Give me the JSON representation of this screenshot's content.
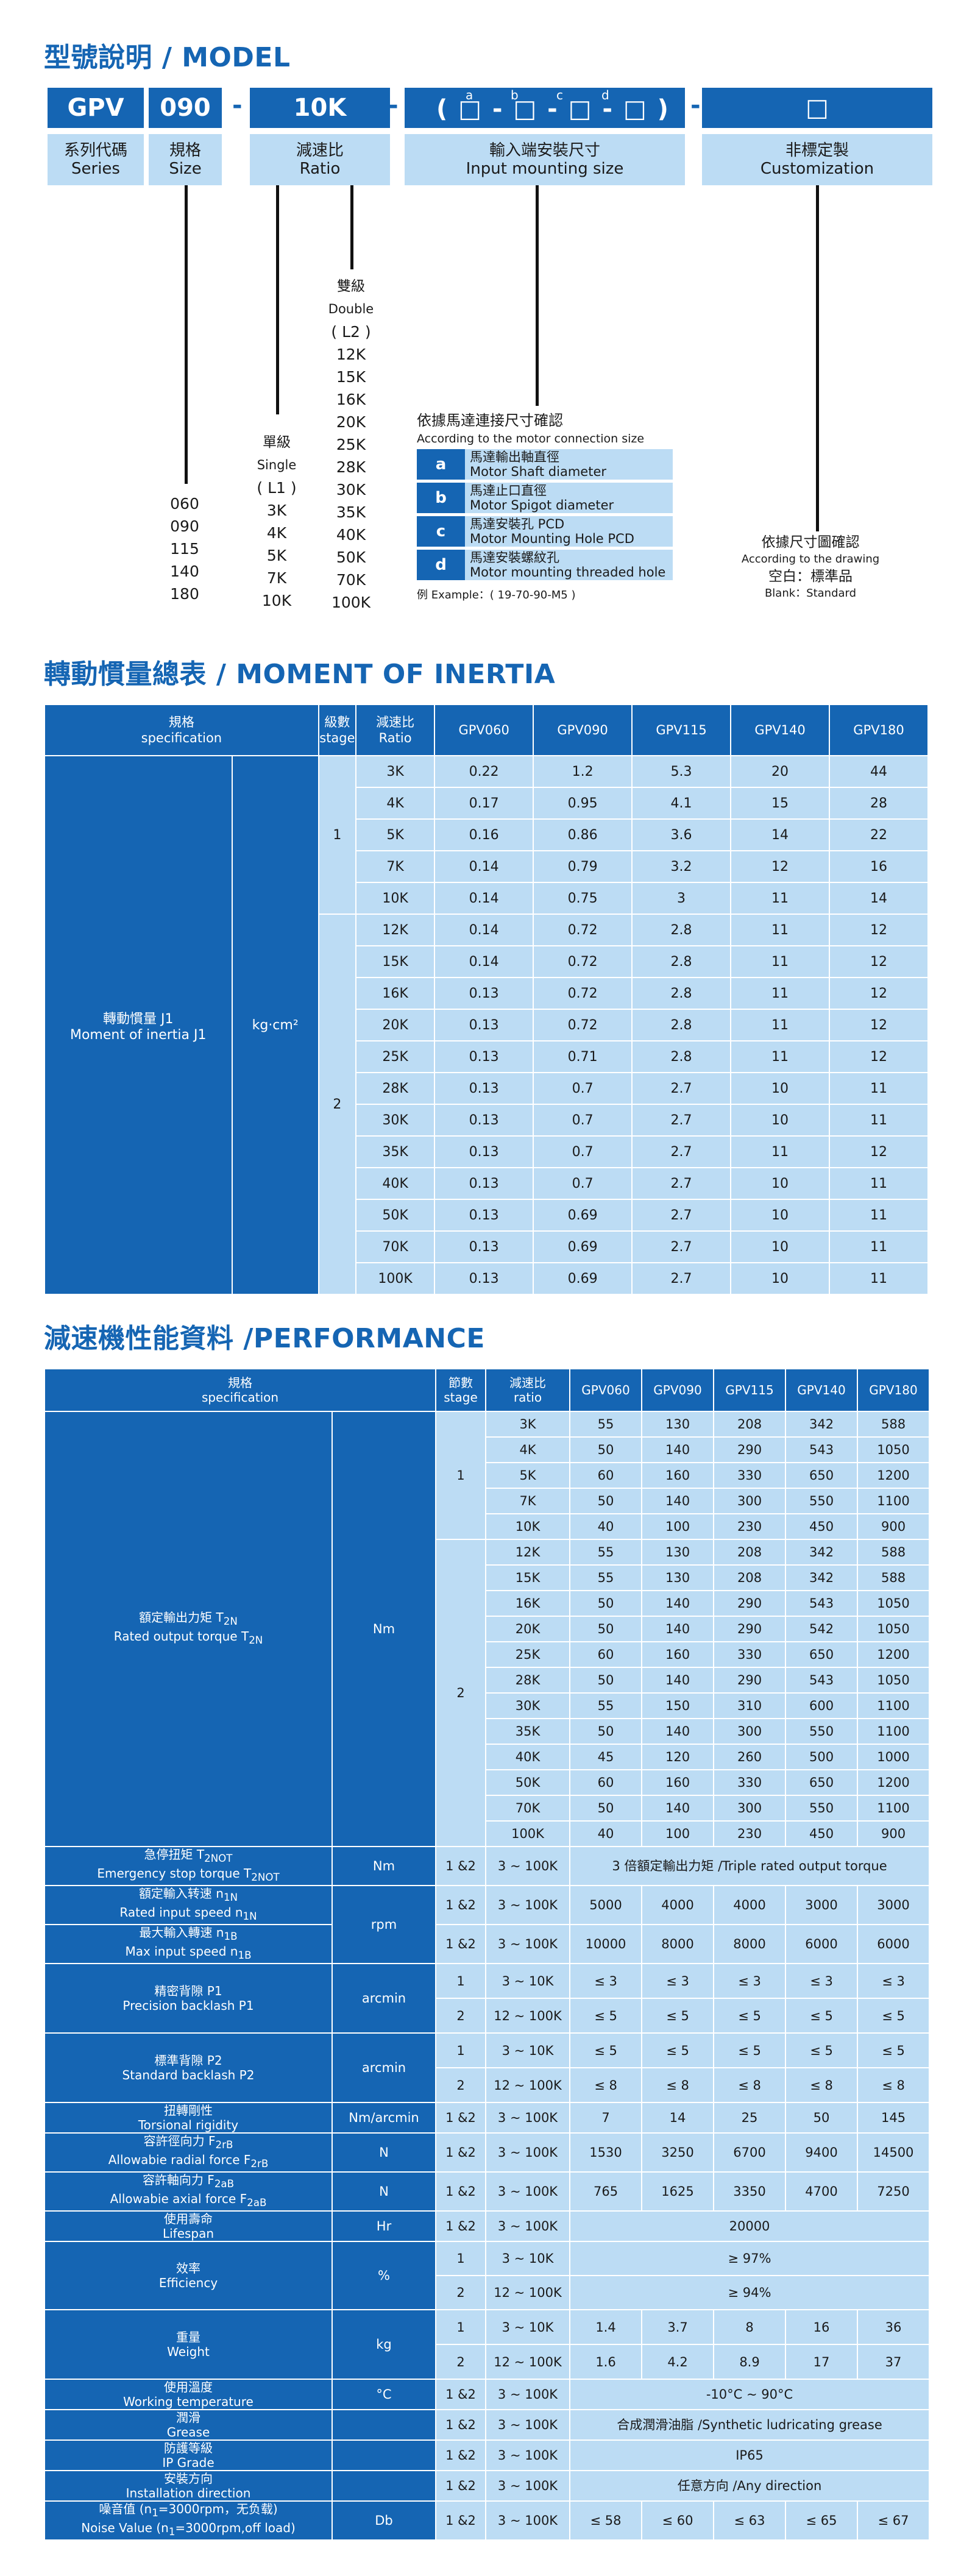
{
  "model": {
    "title": "型號說明 / MODEL",
    "code": {
      "series": "GPV",
      "size": "090",
      "ratio": "10K",
      "custom": "□",
      "dash": "-",
      "mount_letters": [
        "a",
        "b",
        "c",
        "d"
      ],
      "mount_pattern": "( □ - □ - □ - □ )"
    },
    "labels": [
      {
        "cn": "系列代碼",
        "en": "Series"
      },
      {
        "cn": "規格",
        "en": "Size"
      },
      {
        "cn": "減速比",
        "en": "Ratio"
      },
      {
        "cn": "輸入端安裝尺寸",
        "en": "Input mounting size"
      },
      {
        "cn": "非標定製",
        "en": "Customization"
      }
    ],
    "sizes": [
      "060",
      "090",
      "115",
      "140",
      "180"
    ],
    "single": {
      "cn": "單級",
      "en": "Single",
      "code": "( L1 )",
      "ratios": [
        "3K",
        "4K",
        "5K",
        "7K",
        "10K"
      ]
    },
    "double": {
      "cn": "雙級",
      "en": "Double",
      "code": "( L2 )",
      "ratios": [
        "12K",
        "15K",
        "16K",
        "20K",
        "25K",
        "28K",
        "30K",
        "35K",
        "40K",
        "50K",
        "70K",
        "100K"
      ]
    },
    "mounting": {
      "title_cn": "依據馬達連接尺寸確認",
      "title_en": "According to the motor connection size",
      "items": [
        {
          "key": "a",
          "cn": "馬達輸出軸直徑",
          "en": "Motor Shaft diameter"
        },
        {
          "key": "b",
          "cn": "馬達止口直徑",
          "en": "Motor Spigot diameter"
        },
        {
          "key": "c",
          "cn": "馬達安裝孔 PCD",
          "en": "Motor Mounting Hole PCD"
        },
        {
          "key": "d",
          "cn": "馬達安裝螺紋孔",
          "en": "Motor mounting threaded hole"
        }
      ],
      "example": "例 Example：( 19-70-90-M5 )"
    },
    "custom_note": {
      "cn": "依據尺寸圖確認",
      "en": "According to the drawing",
      "blank_cn": "空白：標準品",
      "blank_en": "Blank：Standard"
    }
  },
  "inertia": {
    "title": "轉動慣量總表 / MOMENT OF INERTIA",
    "headers": {
      "spec_cn": "規格",
      "spec_en": "specification",
      "stage_cn": "級數",
      "stage_en": "stage",
      "ratio_cn": "減速比",
      "ratio_en": "Ratio",
      "models": [
        "GPV060",
        "GPV090",
        "GPV115",
        "GPV140",
        "GPV180"
      ]
    },
    "row_label_cn": "轉動慣量 J1",
    "row_label_en": "Moment of inertia J1",
    "unit": "kg·cm²",
    "stages": [
      "1",
      "2"
    ],
    "rows": [
      {
        "ratio": "3K",
        "v": [
          "0.22",
          "1.2",
          "5.3",
          "20",
          "44"
        ]
      },
      {
        "ratio": "4K",
        "v": [
          "0.17",
          "0.95",
          "4.1",
          "15",
          "28"
        ]
      },
      {
        "ratio": "5K",
        "v": [
          "0.16",
          "0.86",
          "3.6",
          "14",
          "22"
        ]
      },
      {
        "ratio": "7K",
        "v": [
          "0.14",
          "0.79",
          "3.2",
          "12",
          "16"
        ]
      },
      {
        "ratio": "10K",
        "v": [
          "0.14",
          "0.75",
          "3",
          "11",
          "14"
        ]
      },
      {
        "ratio": "12K",
        "v": [
          "0.14",
          "0.72",
          "2.8",
          "11",
          "12"
        ]
      },
      {
        "ratio": "15K",
        "v": [
          "0.14",
          "0.72",
          "2.8",
          "11",
          "12"
        ]
      },
      {
        "ratio": "16K",
        "v": [
          "0.13",
          "0.72",
          "2.8",
          "11",
          "12"
        ]
      },
      {
        "ratio": "20K",
        "v": [
          "0.13",
          "0.72",
          "2.8",
          "11",
          "12"
        ]
      },
      {
        "ratio": "25K",
        "v": [
          "0.13",
          "0.71",
          "2.8",
          "11",
          "12"
        ]
      },
      {
        "ratio": "28K",
        "v": [
          "0.13",
          "0.7",
          "2.7",
          "10",
          "11"
        ]
      },
      {
        "ratio": "30K",
        "v": [
          "0.13",
          "0.7",
          "2.7",
          "10",
          "11"
        ]
      },
      {
        "ratio": "35K",
        "v": [
          "0.13",
          "0.7",
          "2.7",
          "11",
          "12"
        ]
      },
      {
        "ratio": "40K",
        "v": [
          "0.13",
          "0.7",
          "2.7",
          "10",
          "11"
        ]
      },
      {
        "ratio": "50K",
        "v": [
          "0.13",
          "0.69",
          "2.7",
          "10",
          "11"
        ]
      },
      {
        "ratio": "70K",
        "v": [
          "0.13",
          "0.69",
          "2.7",
          "10",
          "11"
        ]
      },
      {
        "ratio": "100K",
        "v": [
          "0.13",
          "0.69",
          "2.7",
          "10",
          "11"
        ]
      }
    ]
  },
  "performance": {
    "title": "減速機性能資料 /PERFORMANCE",
    "headers": {
      "spec_cn": "規格",
      "spec_en": "specification",
      "stage_cn": "節數",
      "stage_en": "stage",
      "ratio_cn": "減速比",
      "ratio_en": "ratio",
      "models": [
        "GPV060",
        "GPV090",
        "GPV115",
        "GPV140",
        "GPV180"
      ]
    },
    "torque": {
      "label_cn": "額定輸出力矩 T",
      "sub_cn": "2N",
      "label_en": "Rated output torque T",
      "sub_en": "2N",
      "unit": "Nm",
      "stages": [
        "1",
        "2"
      ],
      "rows": [
        {
          "ratio": "3K",
          "v": [
            "55",
            "130",
            "208",
            "342",
            "588"
          ]
        },
        {
          "ratio": "4K",
          "v": [
            "50",
            "140",
            "290",
            "543",
            "1050"
          ]
        },
        {
          "ratio": "5K",
          "v": [
            "60",
            "160",
            "330",
            "650",
            "1200"
          ]
        },
        {
          "ratio": "7K",
          "v": [
            "50",
            "140",
            "300",
            "550",
            "1100"
          ]
        },
        {
          "ratio": "10K",
          "v": [
            "40",
            "100",
            "230",
            "450",
            "900"
          ]
        },
        {
          "ratio": "12K",
          "v": [
            "55",
            "130",
            "208",
            "342",
            "588"
          ]
        },
        {
          "ratio": "15K",
          "v": [
            "55",
            "130",
            "208",
            "342",
            "588"
          ]
        },
        {
          "ratio": "16K",
          "v": [
            "50",
            "140",
            "290",
            "543",
            "1050"
          ]
        },
        {
          "ratio": "20K",
          "v": [
            "50",
            "140",
            "290",
            "542",
            "1050"
          ]
        },
        {
          "ratio": "25K",
          "v": [
            "60",
            "160",
            "330",
            "650",
            "1200"
          ]
        },
        {
          "ratio": "28K",
          "v": [
            "50",
            "140",
            "290",
            "543",
            "1050"
          ]
        },
        {
          "ratio": "30K",
          "v": [
            "55",
            "150",
            "310",
            "600",
            "1100"
          ]
        },
        {
          "ratio": "35K",
          "v": [
            "50",
            "140",
            "300",
            "550",
            "1100"
          ]
        },
        {
          "ratio": "40K",
          "v": [
            "45",
            "120",
            "260",
            "500",
            "1000"
          ]
        },
        {
          "ratio": "50K",
          "v": [
            "60",
            "160",
            "330",
            "650",
            "1200"
          ]
        },
        {
          "ratio": "70K",
          "v": [
            "50",
            "140",
            "300",
            "550",
            "1100"
          ]
        },
        {
          "ratio": "100K",
          "v": [
            "40",
            "100",
            "230",
            "450",
            "900"
          ]
        }
      ]
    },
    "emergency": {
      "label_cn": "急停扭矩 T",
      "sub_cn": "2NOT",
      "label_en": "Emergency stop torque T",
      "sub_en": "2NOT",
      "unit": "Nm",
      "stage": "1 &2",
      "ratio": "3 ~ 100K",
      "value": "3 倍額定輸出力矩 /Triple rated output torque"
    },
    "speed": {
      "unit": "rpm",
      "rated": {
        "label_cn": "額定輸入转速 n",
        "sub_cn": "1N",
        "label_en": "Rated input speed n",
        "sub_en": "1N",
        "stage": "1 &2",
        "ratio": "3 ~ 100K",
        "v": [
          "5000",
          "4000",
          "4000",
          "3000",
          "3000"
        ]
      },
      "max": {
        "label_cn": "最大輸入轉速 n",
        "sub_cn": "1B",
        "label_en": "Max input speed n",
        "sub_en": "1B",
        "stage": "1 &2",
        "ratio": "3 ~ 100K",
        "v": [
          "10000",
          "8000",
          "8000",
          "6000",
          "6000"
        ]
      }
    },
    "precision": {
      "label_cn": "精密背隙 P1",
      "label_en": "Precision backlash P1",
      "unit": "arcmin",
      "rows": [
        {
          "stage": "1",
          "ratio": "3 ~ 10K",
          "v": [
            "≤ 3",
            "≤ 3",
            "≤ 3",
            "≤ 3",
            "≤ 3"
          ]
        },
        {
          "stage": "2",
          "ratio": "12 ~ 100K",
          "v": [
            "≤ 5",
            "≤ 5",
            "≤ 5",
            "≤ 5",
            "≤ 5"
          ]
        }
      ]
    },
    "standard": {
      "label_cn": "標準背隙 P2",
      "label_en": "Standard backlash P2",
      "unit": "arcmin",
      "rows": [
        {
          "stage": "1",
          "ratio": "3 ~ 10K",
          "v": [
            "≤ 5",
            "≤ 5",
            "≤ 5",
            "≤ 5",
            "≤ 5"
          ]
        },
        {
          "stage": "2",
          "ratio": "12 ~ 100K",
          "v": [
            "≤ 8",
            "≤ 8",
            "≤ 8",
            "≤ 8",
            "≤ 8"
          ]
        }
      ]
    },
    "rigidity": {
      "label_cn": "扭轉剛性",
      "label_en": "Torsional rigidity",
      "unit": "Nm/arcmin",
      "stage": "1 &2",
      "ratio": "3 ~ 100K",
      "v": [
        "7",
        "14",
        "25",
        "50",
        "145"
      ]
    },
    "radial": {
      "label_cn": "容許徑向力 F",
      "sub_cn": "2rB",
      "label_en": "Allowabie radial force F",
      "sub_en": "2rB",
      "unit": "N",
      "stage": "1 &2",
      "ratio": "3 ~ 100K",
      "v": [
        "1530",
        "3250",
        "6700",
        "9400",
        "14500"
      ]
    },
    "axial": {
      "label_cn": "容許軸向力 F",
      "sub_cn": "2aB",
      "label_en": "Allowabie axial force F",
      "sub_en": "2aB",
      "unit": "N",
      "stage": "1 &2",
      "ratio": "3 ~ 100K",
      "v": [
        "765",
        "1625",
        "3350",
        "4700",
        "7250"
      ]
    },
    "lifespan": {
      "label_cn": "使用壽命",
      "label_en": "Lifespan",
      "unit": "Hr",
      "stage": "1 &2",
      "ratio": "3 ~ 100K",
      "value": "20000"
    },
    "efficiency": {
      "label_cn": "效率",
      "label_en": "Efficiency",
      "unit": "%",
      "rows": [
        {
          "stage": "1",
          "ratio": "3 ~ 10K",
          "value": "≥ 97%"
        },
        {
          "stage": "2",
          "ratio": "12 ~ 100K",
          "value": "≥ 94%"
        }
      ]
    },
    "weight": {
      "label_cn": "重量",
      "label_en": "Weight",
      "unit": "kg",
      "rows": [
        {
          "stage": "1",
          "ratio": "3 ~ 10K",
          "v": [
            "1.4",
            "3.7",
            "8",
            "16",
            "36"
          ]
        },
        {
          "stage": "2",
          "ratio": "12 ~ 100K",
          "v": [
            "1.6",
            "4.2",
            "8.9",
            "17",
            "37"
          ]
        }
      ]
    },
    "temperature": {
      "label_cn": "使用溫度",
      "label_en": "Working temperature",
      "unit": "°C",
      "stage": "1 &2",
      "ratio": "3 ~ 100K",
      "value": "-10°C ~ 90°C"
    },
    "grease": {
      "label_cn": "潤滑",
      "label_en": "Grease",
      "stage": "1 &2",
      "ratio": "3 ~ 100K",
      "value": "合成潤滑油脂 /Synthetic ludricating grease"
    },
    "ip": {
      "label_cn": "防護等級",
      "label_en": "IP Grade",
      "stage": "1 &2",
      "ratio": "3 ~ 100K",
      "value": "IP65"
    },
    "direction": {
      "label_cn": "安裝方向",
      "label_en": "Installation direction",
      "stage": "1 &2",
      "ratio": "3 ~ 100K",
      "value": "任意方向 /Any direction"
    },
    "noise": {
      "label_cn": "噪音值 (n",
      "sub_cn": "1",
      "label_cn2": "=3000rpm，无负载)",
      "label_en": "Noise Value (n",
      "sub_en": "1",
      "label_en2": "=3000rpm,off load)",
      "unit": "Db",
      "stage": "1 &2",
      "ratio": "3 ~ 100K",
      "v": [
        "≤ 58",
        "≤ 60",
        "≤ 63",
        "≤ 65",
        "≤ 67"
      ]
    }
  }
}
